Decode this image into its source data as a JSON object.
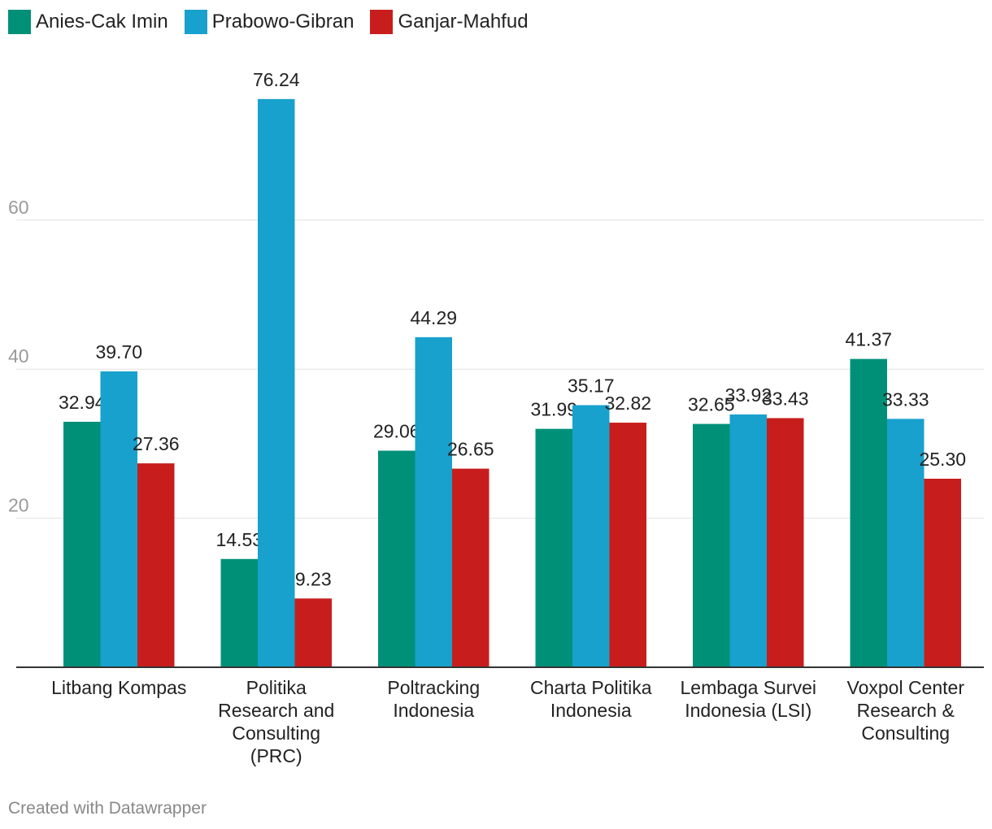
{
  "chart_data": {
    "type": "bar",
    "title": "",
    "xlabel": "",
    "ylabel": "",
    "ylim": [
      0,
      80
    ],
    "y_ticks": [
      20,
      40,
      60
    ],
    "grid": true,
    "legend_position": "top-left",
    "categories": [
      [
        "Litbang Kompas"
      ],
      [
        "Politika",
        "Research and",
        "Consulting",
        "(PRC)"
      ],
      [
        "Poltracking",
        "Indonesia"
      ],
      [
        "Charta Politika",
        "Indonesia"
      ],
      [
        "Lembaga Survei",
        "Indonesia (LSI)"
      ],
      [
        "Voxpol Center",
        "Research &",
        "Consulting"
      ]
    ],
    "series": [
      {
        "name": "Anies-Cak Imin",
        "color": "#009078",
        "values": [
          32.94,
          14.53,
          29.06,
          31.99,
          32.65,
          41.37
        ],
        "labels": [
          "32.94",
          "14.53",
          "29.06",
          "31.99",
          "32.65",
          "41.37"
        ]
      },
      {
        "name": "Prabowo-Gibran",
        "color": "#18a1cd",
        "values": [
          39.7,
          76.24,
          44.29,
          35.17,
          33.92,
          33.33
        ],
        "labels": [
          "39.70",
          "76.24",
          "44.29",
          "35.17",
          "33.92",
          "33.33"
        ]
      },
      {
        "name": "Ganjar-Mahfud",
        "color": "#c71e1d",
        "values": [
          27.36,
          9.23,
          26.65,
          32.82,
          33.43,
          25.3
        ],
        "labels": [
          "27.36",
          "9.23",
          "26.65",
          "32.82",
          "33.43",
          "25.30"
        ]
      }
    ]
  },
  "footer": {
    "credit": "Created with Datawrapper"
  }
}
